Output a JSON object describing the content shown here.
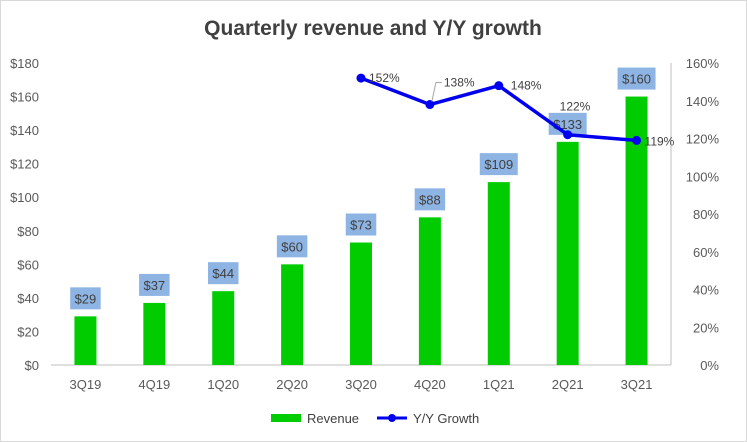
{
  "chart_data": {
    "type": "bar",
    "title": "Quarterly revenue and Y/Y growth",
    "categories": [
      "3Q19",
      "4Q19",
      "1Q20",
      "2Q20",
      "3Q20",
      "4Q20",
      "1Q21",
      "2Q21",
      "3Q21"
    ],
    "series": [
      {
        "name": "Revenue",
        "type": "bar",
        "axis": "left",
        "color": "#00cc00",
        "values": [
          29,
          37,
          44,
          60,
          73,
          88,
          109,
          133,
          160
        ],
        "labels": [
          "$29",
          "$37",
          "$44",
          "$60",
          "$73",
          "$88",
          "$109",
          "$133",
          "$160"
        ],
        "label_box_color": "#8eb4e3"
      },
      {
        "name": "Y/Y Growth",
        "type": "line",
        "axis": "right",
        "color": "#0000ee",
        "values": [
          null,
          null,
          null,
          null,
          152,
          138,
          148,
          122,
          119
        ],
        "labels": [
          "",
          "",
          "",
          "",
          "152%",
          "138%",
          "148%",
          "122%",
          "119%"
        ]
      }
    ],
    "y_left": {
      "min": 0,
      "max": 180,
      "step": 20,
      "ticks": [
        "$0",
        "$20",
        "$40",
        "$60",
        "$80",
        "$100",
        "$120",
        "$140",
        "$160",
        "$180"
      ]
    },
    "y_right": {
      "min": 0,
      "max": 160,
      "step": 20,
      "ticks": [
        "0%",
        "20%",
        "40%",
        "60%",
        "80%",
        "100%",
        "120%",
        "140%",
        "160%"
      ]
    },
    "grid": false,
    "legend": "bottom"
  }
}
